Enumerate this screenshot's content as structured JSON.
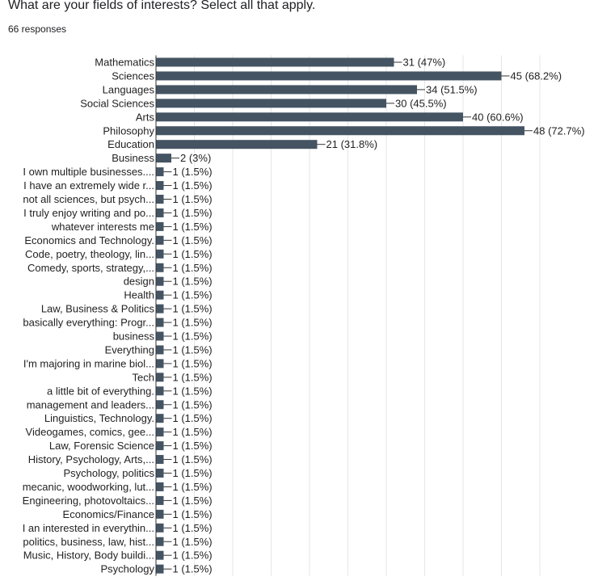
{
  "question": {
    "title": "What are your fields of interests? Select all that apply.",
    "response_count": "66 responses"
  },
  "colors": {
    "bar": "#455463",
    "grid": "#e6e6e6",
    "axis": "#333333",
    "text": "#222222"
  },
  "chart_data": {
    "type": "bar",
    "orientation": "horizontal",
    "grid": true,
    "categories": [
      "Mathematics",
      "Sciences",
      "Languages",
      "Social Sciences",
      "Arts",
      "Philosophy",
      "Education",
      "Business",
      "I own multiple businesses....",
      "I have an extremely wide r...",
      "not all sciences, but psych...",
      "I truly enjoy writing and po...",
      "whatever interests me",
      "Economics and Technology.",
      "Code, poetry, theology, lin...",
      "Comedy, sports, strategy,...",
      "design",
      "Health",
      "Law, Business & Politics",
      "basically everything: Progr...",
      "business",
      "Everything",
      "I'm majoring in marine biol...",
      "Tech",
      "a little bit of everything.",
      "management and leaders...",
      "Linguistics, Technology.",
      "Videogames, comics, gee...",
      "Law, Forensic Science",
      "History, Psychology, Arts,...",
      "Psychology, politics",
      "mecanic, woodworking, lut...",
      "Engineering, photovoltaics...",
      "Economics/Finance",
      "I an interested in everythin...",
      "politics, business, law, hist...",
      "Music, History, Body buildi...",
      "Psychology"
    ],
    "values": [
      31,
      45,
      34,
      30,
      40,
      48,
      21,
      2,
      1,
      1,
      1,
      1,
      1,
      1,
      1,
      1,
      1,
      1,
      1,
      1,
      1,
      1,
      1,
      1,
      1,
      1,
      1,
      1,
      1,
      1,
      1,
      1,
      1,
      1,
      1,
      1,
      1,
      1
    ],
    "value_labels": [
      "31 (47%)",
      "45 (68.2%)",
      "34 (51.5%)",
      "30 (45.5%)",
      "40 (60.6%)",
      "48 (72.7%)",
      "21 (31.8%)",
      "2 (3%)",
      "1 (1.5%)",
      "1 (1.5%)",
      "1 (1.5%)",
      "1 (1.5%)",
      "1 (1.5%)",
      "1 (1.5%)",
      "1 (1.5%)",
      "1 (1.5%)",
      "1 (1.5%)",
      "1 (1.5%)",
      "1 (1.5%)",
      "1 (1.5%)",
      "1 (1.5%)",
      "1 (1.5%)",
      "1 (1.5%)",
      "1 (1.5%)",
      "1 (1.5%)",
      "1 (1.5%)",
      "1 (1.5%)",
      "1 (1.5%)",
      "1 (1.5%)",
      "1 (1.5%)",
      "1 (1.5%)",
      "1 (1.5%)",
      "1 (1.5%)",
      "1 (1.5%)",
      "1 (1.5%)",
      "1 (1.5%)",
      "1 (1.5%)",
      "1 (1.5%)"
    ],
    "xlim": [
      0,
      51
    ]
  }
}
